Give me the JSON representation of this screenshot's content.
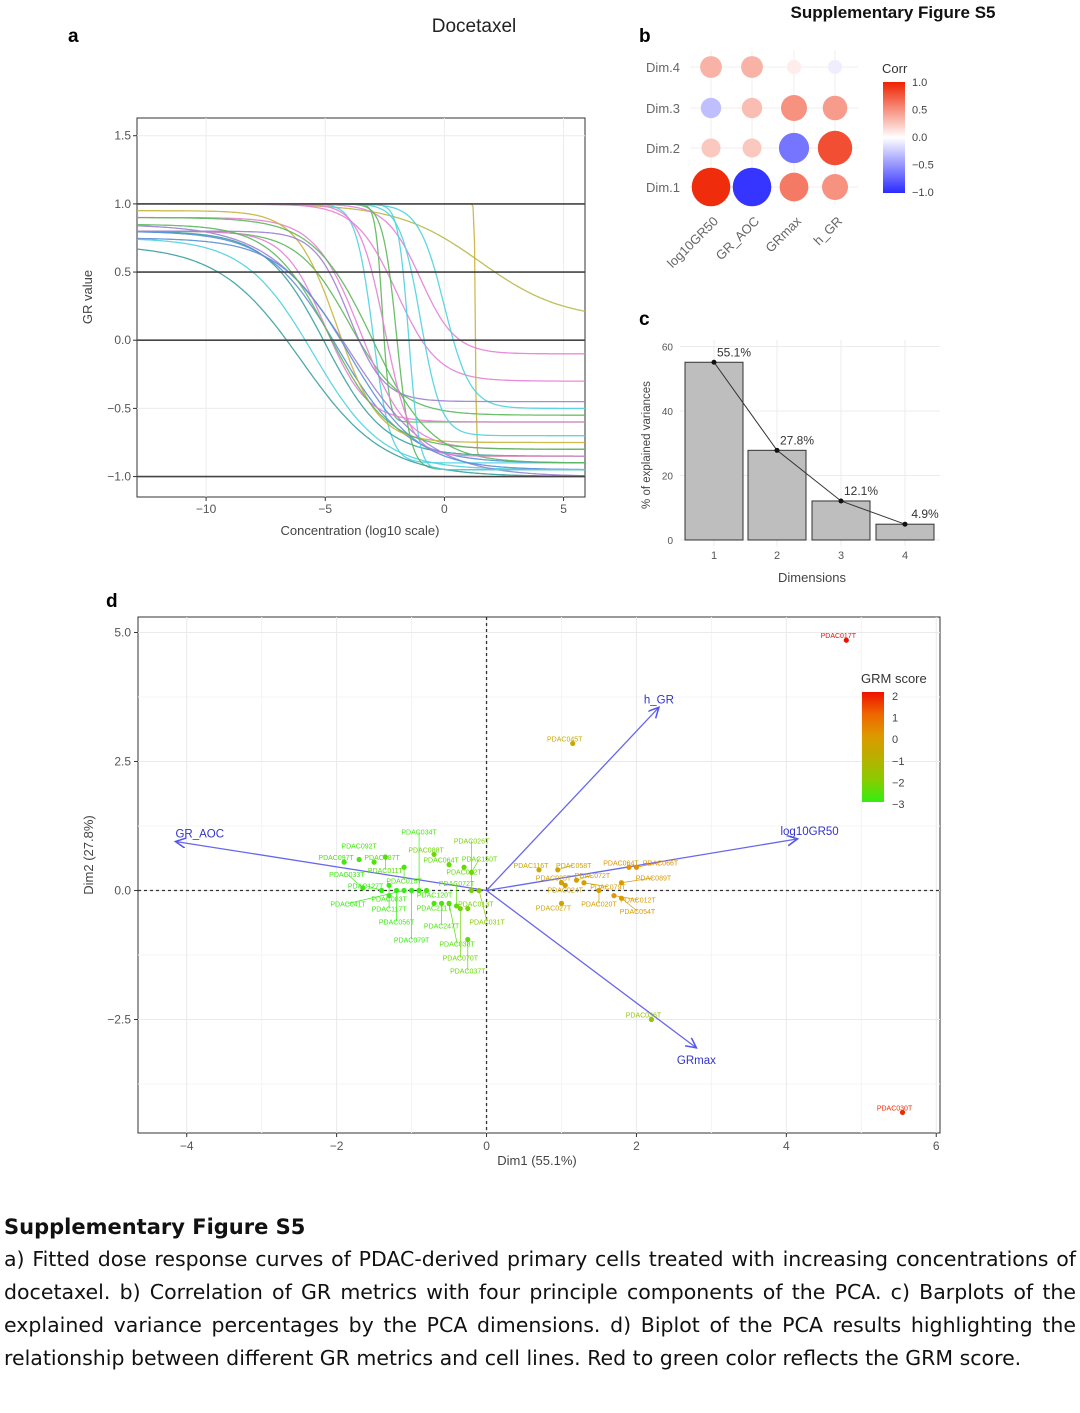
{
  "figure_title": "Supplementary Figure S5",
  "panel_letters": {
    "a": "a",
    "b": "b",
    "c": "c",
    "d": "d"
  },
  "caption": {
    "title": "Supplementary Figure S5",
    "body": "a) Fitted dose response curves of PDAC-derived primary cells treated with increasing concentrations of docetaxel. b) Correlation of GR metrics with four principle components of the PCA. c) Barplots of the explained variance percentages by the PCA dimensions. d) Biplot of the PCA results highlighting the relationship between different GR metrics and cell lines. Red to green color reflects the GRM score."
  },
  "chart_data": [
    {
      "id": "a",
      "type": "line",
      "title": "Docetaxel",
      "xlabel": "Concentration (log10 scale)",
      "ylabel": "GR value",
      "xlim": [
        -12.9,
        5.9
      ],
      "ylim": [
        -1.15,
        1.63
      ],
      "xticks": [
        -10,
        -5,
        0,
        5
      ],
      "xtick_labels": [
        "−10",
        "−5",
        "0",
        "5"
      ],
      "yticks": [
        1.5,
        1.0,
        0.5,
        0.0,
        -0.5,
        -1.0
      ],
      "ytick_labels": [
        "1.5",
        "1.0",
        "0.5",
        "0.0",
        "−0.5",
        "−1.0"
      ],
      "reference_lines": [
        1.0,
        0.5,
        0.0,
        -1.0
      ],
      "model": "GR = ginf + (top - ginf) / (1 + 10^(h*(x - ec50)))",
      "series": [
        {
          "top": 1,
          "ginf": 0.15,
          "ec50": 1.5,
          "h": 0.25,
          "color": "#b8b84a"
        },
        {
          "top": 1,
          "ginf": -0.85,
          "ec50": 1.3,
          "h": 20,
          "color": "#c8b43c"
        },
        {
          "top": 1,
          "ginf": -0.6,
          "ec50": -2.6,
          "h": 3,
          "color": "#5cb85c"
        },
        {
          "top": 1,
          "ginf": -0.9,
          "ec50": -3,
          "h": 1.2,
          "color": "#4fd1e0"
        },
        {
          "top": 1,
          "ginf": -0.3,
          "ec50": -2,
          "h": 0.5,
          "color": "#e67fd6"
        },
        {
          "top": 1,
          "ginf": -0.1,
          "ec50": -1,
          "h": 0.6,
          "color": "#e67fd6"
        },
        {
          "top": 0.8,
          "ginf": -0.55,
          "ec50": -4,
          "h": 0.4,
          "color": "#5cb85c"
        },
        {
          "top": 0.8,
          "ginf": -0.85,
          "ec50": -5,
          "h": 0.35,
          "color": "#3aa0a0"
        },
        {
          "top": 0.8,
          "ginf": -0.9,
          "ec50": -4.5,
          "h": 0.3,
          "color": "#5a8fd6"
        },
        {
          "top": 0.75,
          "ginf": -0.95,
          "ec50": -5.5,
          "h": 0.3,
          "color": "#4fd1e0"
        },
        {
          "top": 0.85,
          "ginf": -1.0,
          "ec50": -4,
          "h": 0.25,
          "color": "#9b7fd1"
        },
        {
          "top": 0.9,
          "ginf": -0.8,
          "ec50": -3.5,
          "h": 0.45,
          "color": "#e67fd6"
        },
        {
          "top": 1,
          "ginf": -0.7,
          "ec50": -1,
          "h": 1.0,
          "color": "#4fd1e0"
        },
        {
          "top": 1,
          "ginf": -0.95,
          "ec50": -2,
          "h": 1.5,
          "color": "#5cb85c"
        },
        {
          "top": 0.95,
          "ginf": -0.75,
          "ec50": -4.5,
          "h": 0.5,
          "color": "#c8b43c"
        },
        {
          "top": 0.7,
          "ginf": -1.0,
          "ec50": -6,
          "h": 0.25,
          "color": "#3aa0a0"
        },
        {
          "top": 0.8,
          "ginf": -0.6,
          "ec50": -5,
          "h": 0.5,
          "color": "#e67fd6"
        },
        {
          "top": 1,
          "ginf": -0.5,
          "ec50": 0,
          "h": 0.8,
          "color": "#4fd1e0"
        },
        {
          "top": 0.9,
          "ginf": -0.9,
          "ec50": -3,
          "h": 0.35,
          "color": "#5cb85c"
        },
        {
          "top": 0.8,
          "ginf": -0.45,
          "ec50": -4,
          "h": 0.6,
          "color": "#9b7fd1"
        },
        {
          "top": 1,
          "ginf": -0.85,
          "ec50": -2.5,
          "h": 0.8,
          "color": "#e67fd6"
        },
        {
          "top": 0.75,
          "ginf": -0.95,
          "ec50": -4,
          "h": 0.3,
          "color": "#5a8fd6"
        },
        {
          "top": 1,
          "ginf": -0.95,
          "ec50": -1.5,
          "h": 2,
          "color": "#4fd1e0"
        },
        {
          "top": 0.85,
          "ginf": -0.8,
          "ec50": -4.8,
          "h": 0.35,
          "color": "#5cb85c"
        }
      ]
    },
    {
      "id": "b",
      "type": "heatmap",
      "rows": [
        "Dim.4",
        "Dim.3",
        "Dim.2",
        "Dim.1"
      ],
      "columns": [
        "log10GR50",
        "GR_AOC",
        "GRmax",
        "h_GR"
      ],
      "values": [
        [
          0.35,
          0.35,
          0.08,
          -0.08
        ],
        [
          -0.3,
          0.3,
          0.5,
          0.45
        ],
        [
          0.25,
          0.25,
          -0.65,
          0.8
        ],
        [
          0.95,
          -0.95,
          0.6,
          0.5
        ]
      ],
      "legend_title": "Corr",
      "legend_ticks": [
        "1.0",
        "0.5",
        "0.0",
        "−0.5",
        "−1.0"
      ],
      "colors": {
        "neg": "#2a2aff",
        "mid": "#ffffff",
        "pos": "#ee2200"
      }
    },
    {
      "id": "c",
      "type": "bar",
      "categories": [
        "1",
        "2",
        "3",
        "4"
      ],
      "values": [
        55.1,
        27.8,
        12.1,
        4.9
      ],
      "data_labels": [
        "55.1%",
        "27.8%",
        "12.1%",
        "4.9%"
      ],
      "xlabel": "Dimensions",
      "ylabel": "% of explained variances",
      "ylim": [
        0,
        62
      ],
      "yticks": [
        0,
        20,
        40,
        60
      ],
      "ytick_labels": [
        "0",
        "20",
        "40",
        "60"
      ],
      "bar_color": "#bebebe"
    },
    {
      "id": "d",
      "type": "scatter",
      "xlabel": "Dim1 (55.1%)",
      "ylabel": "Dim2 (27.8%)",
      "xlim": [
        -4.65,
        6.05
      ],
      "ylim": [
        -4.7,
        5.3
      ],
      "xticks": [
        -4,
        -2,
        0,
        2,
        4,
        6
      ],
      "xtick_labels": [
        "−4",
        "−2",
        "0",
        "2",
        "4",
        "6"
      ],
      "yticks": [
        5.0,
        2.5,
        0.0,
        -2.5
      ],
      "ytick_labels": [
        "5.0",
        "2.5",
        "0.0",
        "−2.5"
      ],
      "arrows": [
        {
          "label": "h_GR",
          "x": 2.3,
          "y": 3.55
        },
        {
          "label": "log10GR50",
          "x": 4.15,
          "y": 1.0
        },
        {
          "label": "GR_AOC",
          "x": -4.15,
          "y": 0.95
        },
        {
          "label": "GRmax",
          "x": 2.8,
          "y": -3.05
        }
      ],
      "legend_title": "GRM score",
      "legend_ticks": [
        "2",
        "1",
        "0",
        "−1",
        "−2",
        "−3"
      ],
      "score_range": [
        -3,
        2
      ],
      "points": [
        {
          "x": -1.9,
          "y": 0.55,
          "score": -2.8,
          "label": "PDAC097T"
        },
        {
          "x": -1.7,
          "y": 0.6,
          "score": -2.8,
          "label": "PDAC092T"
        },
        {
          "x": -1.5,
          "y": 0.55,
          "score": -2.7,
          "label": "PDAC087T"
        },
        {
          "x": -1.35,
          "y": 0.65,
          "score": -2.6,
          "label": "PDAC011T"
        },
        {
          "x": -1.1,
          "y": 0.45,
          "score": -2.7,
          "label": "PDAC015T"
        },
        {
          "x": -0.7,
          "y": 0.7,
          "score": -2.3,
          "label": "PDAC088T"
        },
        {
          "x": -0.5,
          "y": 0.5,
          "score": -2.5,
          "label": "PDAC064T"
        },
        {
          "x": -0.3,
          "y": 0.45,
          "score": -2.4,
          "label": "PDAC022T"
        },
        {
          "x": -0.2,
          "y": 0.35,
          "score": -2.4,
          "label": "PDAC150T"
        },
        {
          "x": -1.3,
          "y": 0.1,
          "score": -2.9,
          "label": "PDAC083T"
        },
        {
          "x": -1.4,
          "y": 0.0,
          "score": -3,
          "label": "PDAC127T"
        },
        {
          "x": -1.3,
          "y": -0.1,
          "score": -2.9,
          "label": "PDAC117T"
        },
        {
          "x": -1.2,
          "y": 0.0,
          "score": -3,
          "label": "PDAC056T"
        },
        {
          "x": -1.1,
          "y": 0.0,
          "score": -3,
          "label": "PDAC041T"
        },
        {
          "x": -1.0,
          "y": 0.0,
          "score": -3,
          "label": "PDAC079T"
        },
        {
          "x": -0.9,
          "y": 0.0,
          "score": -2.9,
          "label": "PDAC034T"
        },
        {
          "x": -0.8,
          "y": 0.0,
          "score": -2.8,
          "label": "PDAC120T"
        },
        {
          "x": -1.65,
          "y": 0.05,
          "score": -2.9,
          "label": "PDAC033T"
        },
        {
          "x": -0.7,
          "y": -0.25,
          "score": -2.7,
          "label": "PDAC211T"
        },
        {
          "x": -0.6,
          "y": -0.25,
          "score": -2.7,
          "label": "PDAC247T"
        },
        {
          "x": -0.5,
          "y": -0.25,
          "score": -2.6,
          "label": "PDAC038T"
        },
        {
          "x": -0.4,
          "y": -0.3,
          "score": -2.5,
          "label": "PDAC072T"
        },
        {
          "x": -0.35,
          "y": -0.35,
          "score": -2.3,
          "label": "PDAC070T"
        },
        {
          "x": -0.25,
          "y": -0.35,
          "score": -2.2,
          "label": "PDAC013T"
        },
        {
          "x": -0.25,
          "y": -0.95,
          "score": -2.4,
          "label": "PDAC037T"
        },
        {
          "x": -0.2,
          "y": 0.0,
          "score": -2.2,
          "label": "PDAC026T"
        },
        {
          "x": -0.1,
          "y": 0.0,
          "score": -2.0,
          "label": "PDAC031T"
        },
        {
          "x": 0.7,
          "y": 0.4,
          "score": -0.6,
          "label": "PDAC116T"
        },
        {
          "x": 0.95,
          "y": 0.4,
          "score": -0.5,
          "label": "PDAC058T"
        },
        {
          "x": 1.0,
          "y": 0.15,
          "score": -0.3,
          "label": "PDAC025T"
        },
        {
          "x": 1.05,
          "y": 0.1,
          "score": -0.4,
          "label": "PDAC024T"
        },
        {
          "x": 1.2,
          "y": 0.2,
          "score": -0.3,
          "label": "PDAC072T"
        },
        {
          "x": 1.3,
          "y": 0.15,
          "score": -0.2,
          "label": "PDAC079T"
        },
        {
          "x": 1.5,
          "y": 0.0,
          "score": -0.2,
          "label": "PDAC020T"
        },
        {
          "x": 1.9,
          "y": 0.45,
          "score": 0.1,
          "label": "PDAC064T"
        },
        {
          "x": 2.0,
          "y": 0.45,
          "score": 0.2,
          "label": "PDAC066T"
        },
        {
          "x": 1.7,
          "y": -0.1,
          "score": -0.1,
          "label": "PDAC012T"
        },
        {
          "x": 1.8,
          "y": -0.15,
          "score": -0.1,
          "label": "PDAC054T"
        },
        {
          "x": 1.8,
          "y": 0.15,
          "score": -0.1,
          "label": "PDAC089T"
        },
        {
          "x": 1.0,
          "y": -0.25,
          "score": -0.5,
          "label": "PDAC027T"
        },
        {
          "x": 4.8,
          "y": 4.85,
          "score": 2.0,
          "label": "PDAC017T"
        },
        {
          "x": 5.55,
          "y": -4.3,
          "score": 1.7,
          "label": "PDAC030T"
        },
        {
          "x": 1.15,
          "y": 2.85,
          "score": -0.6,
          "label": "PDAC045T"
        },
        {
          "x": 2.2,
          "y": -2.5,
          "score": -1.8,
          "label": "PDAC036T"
        }
      ]
    }
  ]
}
